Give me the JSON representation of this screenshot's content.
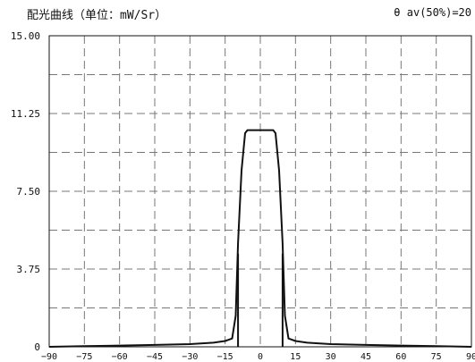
{
  "header": {
    "title": "配光曲线（单位：mW/Sr）",
    "badge": "θ av(50%)=20"
  },
  "chart_data": {
    "type": "line",
    "title": "配光曲线（单位：mW/Sr）",
    "xlabel": "",
    "ylabel": "",
    "xlim": [
      -90,
      90
    ],
    "ylim": [
      0,
      15
    ],
    "grid": true,
    "legend": "none",
    "x_ticks": [
      "−90",
      "−75",
      "−60",
      "−45",
      "−30",
      "−15",
      "0",
      "15",
      "30",
      "45",
      "60",
      "75",
      "90"
    ],
    "y_ticks": [
      "0",
      "3.75",
      "7.50",
      "11.25",
      "15.00"
    ],
    "annotation": "θ av(50%)=20",
    "series": [
      {
        "color": "#111111",
        "points": [
          [
            -90,
            0.0
          ],
          [
            -75,
            0.03
          ],
          [
            -60,
            0.06
          ],
          [
            -45,
            0.09
          ],
          [
            -30,
            0.13
          ],
          [
            -20,
            0.2
          ],
          [
            -15,
            0.28
          ],
          [
            -12,
            0.4
          ],
          [
            -10.5,
            1.5
          ],
          [
            -9.5,
            5.0
          ],
          [
            -8,
            8.5
          ],
          [
            -6.5,
            10.3
          ],
          [
            -5.5,
            10.45
          ],
          [
            5.5,
            10.45
          ],
          [
            6.5,
            10.3
          ],
          [
            8,
            8.5
          ],
          [
            9.5,
            5.0
          ],
          [
            10.5,
            1.5
          ],
          [
            12,
            0.4
          ],
          [
            15,
            0.28
          ],
          [
            20,
            0.2
          ],
          [
            30,
            0.13
          ],
          [
            45,
            0.09
          ],
          [
            60,
            0.06
          ],
          [
            75,
            0.03
          ],
          [
            90,
            0.0
          ]
        ]
      }
    ],
    "markers": [
      {
        "x": -9.5,
        "y_from": 0,
        "y_to": 4.5
      },
      {
        "x": 9.5,
        "y_from": 0,
        "y_to": 4.5
      }
    ]
  }
}
